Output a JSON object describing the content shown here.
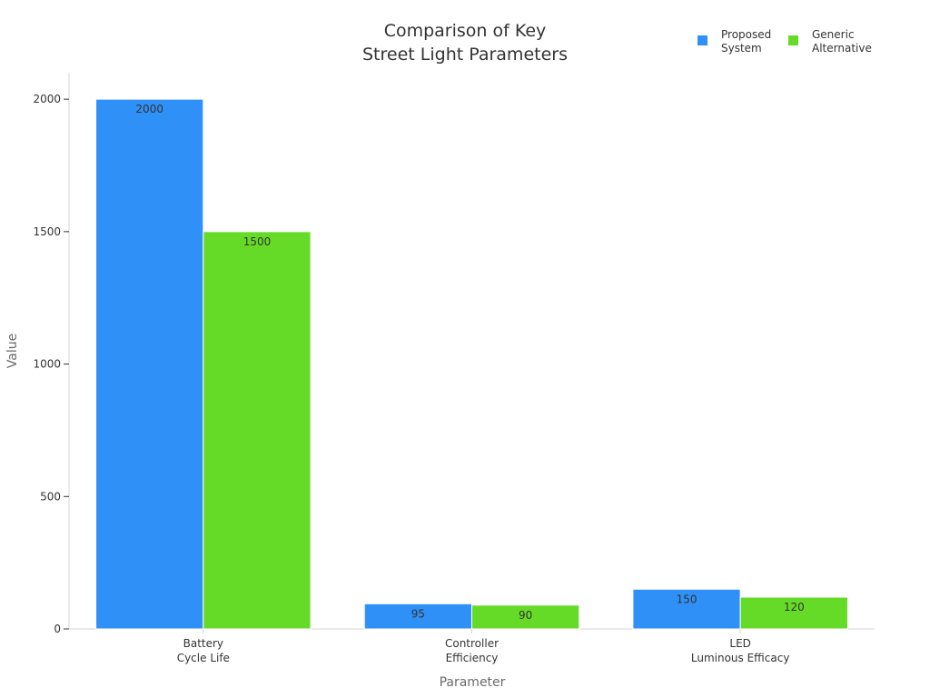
{
  "chart_data": {
    "type": "bar",
    "title": [
      "Comparison of Key",
      "Street Light Parameters"
    ],
    "xlabel": "Parameter",
    "ylabel": "Value",
    "categories": [
      [
        "Battery",
        "Cycle Life"
      ],
      [
        "Controller",
        "Efficiency"
      ],
      [
        "LED",
        "Luminous Efficacy"
      ]
    ],
    "series": [
      {
        "name": [
          "Proposed",
          "System"
        ],
        "values": [
          2000,
          95,
          150
        ],
        "color": "#2f91f8"
      },
      {
        "name": [
          "Generic",
          "Alternative"
        ],
        "values": [
          1500,
          90,
          120
        ],
        "color": "#66db27"
      }
    ],
    "ylim": [
      0,
      2100
    ],
    "yticks": [
      0,
      500,
      1000,
      1500,
      2000
    ],
    "grid": false,
    "legend_position": "top-right",
    "data_labels": true
  }
}
